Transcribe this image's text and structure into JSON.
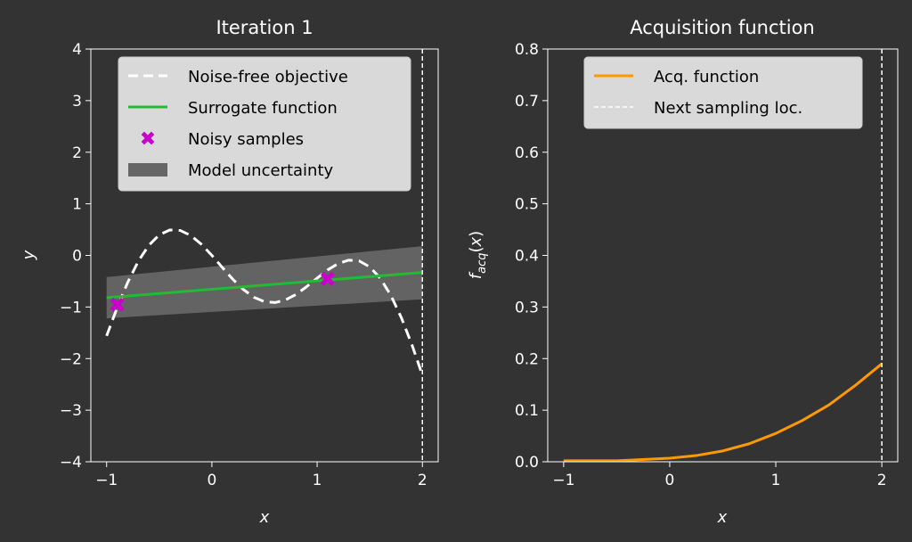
{
  "chart_data": [
    {
      "type": "line",
      "title": "Iteration 1",
      "xlabel": "x",
      "ylabel": "y",
      "xlim": [
        -1.15,
        2.15
      ],
      "ylim": [
        -4,
        4
      ],
      "xticks": [
        "−1",
        "0",
        "1",
        "2"
      ],
      "xtick_values": [
        -1,
        0,
        1,
        2
      ],
      "yticks": [
        "−4",
        "−3",
        "−2",
        "−1",
        "0",
        "1",
        "2",
        "3",
        "4"
      ],
      "ytick_values": [
        -4,
        -3,
        -2,
        -1,
        0,
        1,
        2,
        3,
        4
      ],
      "legend_position": "top",
      "legend": [
        "Noise-free objective",
        "Surrogate function",
        "Noisy samples",
        "Model uncertainty"
      ],
      "series": [
        {
          "name": "Noise-free objective",
          "color": "#ffffff",
          "style": "dashed",
          "x": [
            -1,
            -0.9,
            -0.8,
            -0.7,
            -0.6,
            -0.5,
            -0.4,
            -0.3,
            -0.2,
            -0.1,
            0,
            0.1,
            0.2,
            0.3,
            0.4,
            0.5,
            0.6,
            0.7,
            0.8,
            0.9,
            1.0,
            1.1,
            1.2,
            1.3,
            1.4,
            1.5,
            1.6,
            1.7,
            1.8,
            1.9,
            2.0
          ],
          "y": [
            -1.559,
            -1.013,
            -0.525,
            -0.117,
            0.194,
            0.398,
            0.492,
            0.483,
            0.385,
            0.216,
            0,
            -0.236,
            -0.465,
            -0.663,
            -0.812,
            -0.898,
            -0.914,
            -0.863,
            -0.756,
            -0.607,
            -0.441,
            -0.282,
            -0.158,
            -0.092,
            -0.108,
            -0.223,
            -0.444,
            -0.774,
            -1.207,
            -1.729,
            -2.321
          ]
        },
        {
          "name": "Surrogate function",
          "color": "#22bb33",
          "x": [
            -1,
            2
          ],
          "y": [
            -0.82,
            -0.33
          ]
        },
        {
          "name": "Noisy samples",
          "color": "#cc00cc",
          "x": [
            -0.9,
            1.1
          ],
          "y": [
            -0.95,
            -0.45
          ]
        },
        {
          "name": "Model uncertainty",
          "color": "#777777",
          "x": [
            -1,
            2
          ],
          "lower": [
            -1.22,
            -0.85
          ],
          "upper": [
            -0.42,
            0.18
          ]
        }
      ],
      "vline": {
        "x": 2.0,
        "color": "#ffffff"
      }
    },
    {
      "type": "line",
      "title": "Acquisition function",
      "xlabel": "x",
      "ylabel": "f_acq(x)",
      "xlim": [
        -1.15,
        2.15
      ],
      "ylim": [
        0,
        0.8
      ],
      "xticks": [
        "−1",
        "0",
        "1",
        "2"
      ],
      "xtick_values": [
        -1,
        0,
        1,
        2
      ],
      "yticks": [
        "0.0",
        "0.1",
        "0.2",
        "0.3",
        "0.4",
        "0.5",
        "0.6",
        "0.7",
        "0.8"
      ],
      "ytick_values": [
        0,
        0.1,
        0.2,
        0.3,
        0.4,
        0.5,
        0.6,
        0.7,
        0.8
      ],
      "legend_position": "top",
      "legend": [
        "Acq. function",
        "Next sampling loc."
      ],
      "series": [
        {
          "name": "Acq. function",
          "color": "#ff9900",
          "x": [
            -1,
            -0.5,
            0,
            0.25,
            0.5,
            0.75,
            1,
            1.25,
            1.5,
            1.75,
            2
          ],
          "y": [
            0.002,
            0.002,
            0.007,
            0.012,
            0.021,
            0.035,
            0.055,
            0.08,
            0.11,
            0.148,
            0.19
          ]
        }
      ],
      "vline": {
        "x": 2.0,
        "color": "#ffffff"
      }
    }
  ]
}
